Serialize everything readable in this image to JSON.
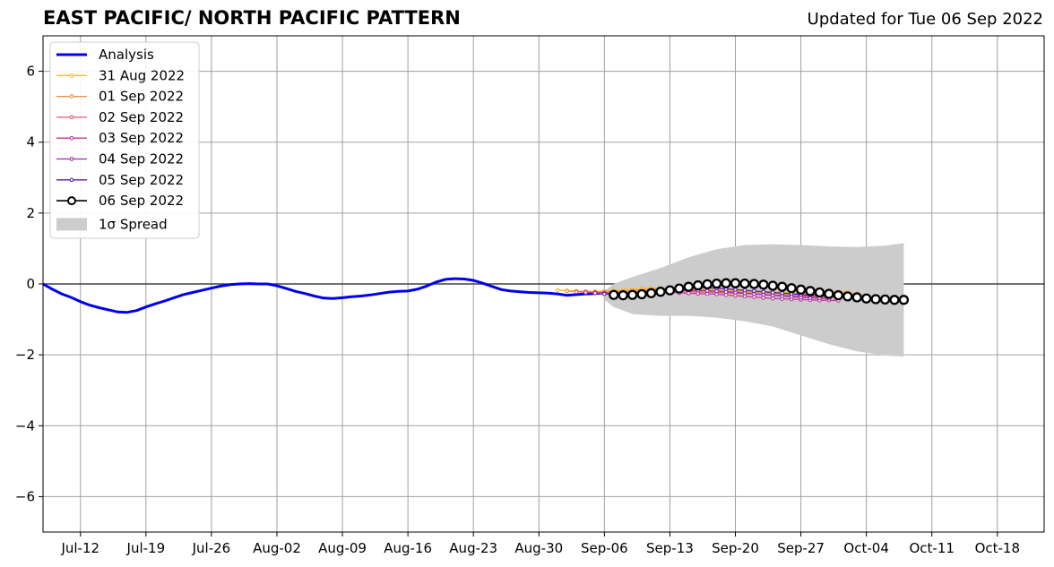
{
  "title": "EAST PACIFIC/ NORTH PACIFIC PATTERN",
  "updated": "Updated for Tue 06 Sep 2022",
  "chart_data": {
    "type": "line",
    "title": "EAST PACIFIC/ NORTH PACIFIC PATTERN",
    "xlabel": "",
    "ylabel": "",
    "x_ticks": [
      "Jul-12",
      "Jul-19",
      "Jul-26",
      "Aug-02",
      "Aug-09",
      "Aug-16",
      "Aug-23",
      "Aug-30",
      "Sep-06",
      "Sep-13",
      "Sep-20",
      "Sep-27",
      "Oct-04",
      "Oct-11",
      "Oct-18"
    ],
    "y_ticks": [
      "−6",
      "−4",
      "−2",
      "0",
      "2",
      "4",
      "6"
    ],
    "ylim": [
      -7,
      7
    ],
    "xlim": [
      "2022-07-08",
      "2022-10-23"
    ],
    "grid": true,
    "legend_position": "top-left",
    "series": [
      {
        "name": "Analysis",
        "color": "#0000ee",
        "x": [
          "2022-07-08",
          "2022-07-09",
          "2022-07-10",
          "2022-07-11",
          "2022-07-12",
          "2022-07-13",
          "2022-07-14",
          "2022-07-15",
          "2022-07-16",
          "2022-07-17",
          "2022-07-18",
          "2022-07-19",
          "2022-07-20",
          "2022-07-21",
          "2022-07-22",
          "2022-07-23",
          "2022-07-24",
          "2022-07-25",
          "2022-07-26",
          "2022-07-27",
          "2022-07-28",
          "2022-07-29",
          "2022-07-30",
          "2022-07-31",
          "2022-08-01",
          "2022-08-02",
          "2022-08-03",
          "2022-08-04",
          "2022-08-05",
          "2022-08-06",
          "2022-08-07",
          "2022-08-08",
          "2022-08-09",
          "2022-08-10",
          "2022-08-11",
          "2022-08-12",
          "2022-08-13",
          "2022-08-14",
          "2022-08-15",
          "2022-08-16",
          "2022-08-17",
          "2022-08-18",
          "2022-08-19",
          "2022-08-20",
          "2022-08-21",
          "2022-08-22",
          "2022-08-23",
          "2022-08-24",
          "2022-08-25",
          "2022-08-26",
          "2022-08-27",
          "2022-08-28",
          "2022-08-29",
          "2022-08-30",
          "2022-08-31",
          "2022-09-01",
          "2022-09-02",
          "2022-09-03",
          "2022-09-04",
          "2022-09-05",
          "2022-09-06"
        ],
        "values": [
          0.0,
          -0.15,
          -0.28,
          -0.38,
          -0.5,
          -0.6,
          -0.67,
          -0.73,
          -0.79,
          -0.8,
          -0.75,
          -0.65,
          -0.56,
          -0.48,
          -0.39,
          -0.3,
          -0.24,
          -0.18,
          -0.12,
          -0.06,
          -0.02,
          0.0,
          0.01,
          0.0,
          0.0,
          -0.05,
          -0.13,
          -0.21,
          -0.27,
          -0.34,
          -0.4,
          -0.41,
          -0.39,
          -0.36,
          -0.34,
          -0.31,
          -0.27,
          -0.23,
          -0.21,
          -0.2,
          -0.15,
          -0.06,
          0.05,
          0.13,
          0.15,
          0.14,
          0.1,
          0.02,
          -0.07,
          -0.16,
          -0.2,
          -0.22,
          -0.24,
          -0.25,
          -0.26,
          -0.28,
          -0.32,
          -0.3,
          -0.28,
          -0.27,
          -0.25
        ]
      },
      {
        "name": "31 Aug 2022",
        "color": "#f5b731",
        "x": [
          "2022-09-01",
          "2022-09-02",
          "2022-09-03",
          "2022-09-04",
          "2022-09-05",
          "2022-09-06",
          "2022-09-07",
          "2022-09-08",
          "2022-09-09",
          "2022-09-10",
          "2022-09-11",
          "2022-09-12",
          "2022-09-13",
          "2022-09-14",
          "2022-09-15",
          "2022-09-16",
          "2022-09-17",
          "2022-09-18",
          "2022-09-19",
          "2022-09-20",
          "2022-09-21",
          "2022-09-22",
          "2022-09-23",
          "2022-09-24",
          "2022-09-25",
          "2022-09-26",
          "2022-09-27",
          "2022-09-28",
          "2022-09-29",
          "2022-09-30",
          "2022-10-01",
          "2022-10-02"
        ],
        "values": [
          -0.17,
          -0.19,
          -0.2,
          -0.21,
          -0.21,
          -0.2,
          -0.19,
          -0.17,
          -0.15,
          -0.13,
          -0.12,
          -0.12,
          -0.12,
          -0.13,
          -0.14,
          -0.15,
          -0.16,
          -0.17,
          -0.18,
          -0.19,
          -0.2,
          -0.21,
          -0.22,
          -0.23,
          -0.24,
          -0.25,
          -0.25,
          -0.25,
          -0.24,
          -0.23,
          -0.22,
          -0.22
        ]
      },
      {
        "name": "01 Sep 2022",
        "color": "#f08a3c",
        "x": [
          "2022-09-02",
          "2022-09-03",
          "2022-09-04",
          "2022-09-05",
          "2022-09-06",
          "2022-09-07",
          "2022-09-08",
          "2022-09-09",
          "2022-09-10",
          "2022-09-11",
          "2022-09-12",
          "2022-09-13",
          "2022-09-14",
          "2022-09-15",
          "2022-09-16",
          "2022-09-17",
          "2022-09-18",
          "2022-09-19",
          "2022-09-20",
          "2022-09-21",
          "2022-09-22",
          "2022-09-23",
          "2022-09-24",
          "2022-09-25",
          "2022-09-26",
          "2022-09-27",
          "2022-09-28",
          "2022-09-29",
          "2022-09-30",
          "2022-10-01",
          "2022-10-02",
          "2022-10-03"
        ],
        "values": [
          -0.2,
          -0.21,
          -0.22,
          -0.23,
          -0.23,
          -0.22,
          -0.21,
          -0.19,
          -0.17,
          -0.16,
          -0.15,
          -0.15,
          -0.16,
          -0.17,
          -0.18,
          -0.19,
          -0.2,
          -0.21,
          -0.22,
          -0.23,
          -0.24,
          -0.25,
          -0.26,
          -0.27,
          -0.28,
          -0.29,
          -0.29,
          -0.29,
          -0.28,
          -0.27,
          -0.27,
          -0.27
        ]
      },
      {
        "name": "02 Sep 2022",
        "color": "#e05a6e",
        "x": [
          "2022-09-03",
          "2022-09-04",
          "2022-09-05",
          "2022-09-06",
          "2022-09-07",
          "2022-09-08",
          "2022-09-09",
          "2022-09-10",
          "2022-09-11",
          "2022-09-12",
          "2022-09-13",
          "2022-09-14",
          "2022-09-15",
          "2022-09-16",
          "2022-09-17",
          "2022-09-18",
          "2022-09-19",
          "2022-09-20",
          "2022-09-21",
          "2022-09-22",
          "2022-09-23",
          "2022-09-24",
          "2022-09-25",
          "2022-09-26",
          "2022-09-27",
          "2022-09-28",
          "2022-09-29",
          "2022-09-30",
          "2022-10-01",
          "2022-10-02"
        ],
        "values": [
          -0.22,
          -0.23,
          -0.24,
          -0.25,
          -0.25,
          -0.24,
          -0.23,
          -0.21,
          -0.2,
          -0.19,
          -0.19,
          -0.2,
          -0.21,
          -0.22,
          -0.23,
          -0.24,
          -0.25,
          -0.26,
          -0.27,
          -0.28,
          -0.3,
          -0.31,
          -0.32,
          -0.33,
          -0.34,
          -0.35,
          -0.36,
          -0.37,
          -0.37,
          -0.37
        ]
      },
      {
        "name": "03 Sep 2022",
        "color": "#c13a9f",
        "x": [
          "2022-09-04",
          "2022-09-05",
          "2022-09-06",
          "2022-09-07",
          "2022-09-08",
          "2022-09-09",
          "2022-09-10",
          "2022-09-11",
          "2022-09-12",
          "2022-09-13",
          "2022-09-14",
          "2022-09-15",
          "2022-09-16",
          "2022-09-17",
          "2022-09-18",
          "2022-09-19",
          "2022-09-20",
          "2022-09-21",
          "2022-09-22",
          "2022-09-23",
          "2022-09-24",
          "2022-09-25",
          "2022-09-26",
          "2022-09-27",
          "2022-09-28",
          "2022-09-29",
          "2022-09-30",
          "2022-10-01"
        ],
        "values": [
          -0.24,
          -0.25,
          -0.26,
          -0.27,
          -0.27,
          -0.27,
          -0.26,
          -0.25,
          -0.24,
          -0.24,
          -0.25,
          -0.26,
          -0.27,
          -0.28,
          -0.29,
          -0.31,
          -0.33,
          -0.35,
          -0.37,
          -0.39,
          -0.41,
          -0.42,
          -0.43,
          -0.44,
          -0.45,
          -0.46,
          -0.46,
          -0.47
        ]
      },
      {
        "name": "04 Sep 2022",
        "color": "#9a2ea8",
        "x": [
          "2022-09-05",
          "2022-09-06",
          "2022-09-07",
          "2022-09-08",
          "2022-09-09",
          "2022-09-10",
          "2022-09-11",
          "2022-09-12",
          "2022-09-13",
          "2022-09-14",
          "2022-09-15",
          "2022-09-16",
          "2022-09-17",
          "2022-09-18",
          "2022-09-19",
          "2022-09-20",
          "2022-09-21",
          "2022-09-22",
          "2022-09-23",
          "2022-09-24",
          "2022-09-25",
          "2022-09-26",
          "2022-09-27",
          "2022-09-28",
          "2022-09-29",
          "2022-09-30"
        ],
        "values": [
          -0.26,
          -0.27,
          -0.28,
          -0.28,
          -0.27,
          -0.25,
          -0.23,
          -0.2,
          -0.18,
          -0.17,
          -0.17,
          -0.18,
          -0.19,
          -0.2,
          -0.22,
          -0.24,
          -0.26,
          -0.28,
          -0.3,
          -0.32,
          -0.34,
          -0.36,
          -0.38,
          -0.39,
          -0.4,
          -0.41
        ]
      },
      {
        "name": "05 Sep 2022",
        "color": "#5a1aa0",
        "x": [
          "2022-09-06",
          "2022-09-07",
          "2022-09-08",
          "2022-09-09",
          "2022-09-10",
          "2022-09-11",
          "2022-09-12",
          "2022-09-13",
          "2022-09-14",
          "2022-09-15",
          "2022-09-16",
          "2022-09-17",
          "2022-09-18",
          "2022-09-19",
          "2022-09-20",
          "2022-09-21",
          "2022-09-22",
          "2022-09-23",
          "2022-09-24",
          "2022-09-25",
          "2022-09-26",
          "2022-09-27",
          "2022-09-28",
          "2022-09-29",
          "2022-09-30"
        ],
        "values": [
          -0.28,
          -0.29,
          -0.29,
          -0.27,
          -0.24,
          -0.2,
          -0.16,
          -0.13,
          -0.11,
          -0.1,
          -0.1,
          -0.11,
          -0.12,
          -0.14,
          -0.16,
          -0.18,
          -0.2,
          -0.22,
          -0.24,
          -0.26,
          -0.28,
          -0.3,
          -0.32,
          -0.33,
          -0.34
        ]
      },
      {
        "name": "06 Sep 2022",
        "color": "#000000",
        "x": [
          "2022-09-07",
          "2022-09-08",
          "2022-09-09",
          "2022-09-10",
          "2022-09-11",
          "2022-09-12",
          "2022-09-13",
          "2022-09-14",
          "2022-09-15",
          "2022-09-16",
          "2022-09-17",
          "2022-09-18",
          "2022-09-19",
          "2022-09-20",
          "2022-09-21",
          "2022-09-22",
          "2022-09-23",
          "2022-09-24",
          "2022-09-25",
          "2022-09-26",
          "2022-09-27",
          "2022-09-28",
          "2022-09-29",
          "2022-09-30",
          "2022-10-01",
          "2022-10-02",
          "2022-10-03",
          "2022-10-04",
          "2022-10-05",
          "2022-10-06",
          "2022-10-07",
          "2022-10-08"
        ],
        "values": [
          -0.31,
          -0.32,
          -0.31,
          -0.29,
          -0.26,
          -0.22,
          -0.18,
          -0.13,
          -0.08,
          -0.04,
          -0.01,
          0.01,
          0.02,
          0.02,
          0.01,
          0.0,
          -0.02,
          -0.05,
          -0.08,
          -0.12,
          -0.16,
          -0.2,
          -0.24,
          -0.28,
          -0.32,
          -0.35,
          -0.38,
          -0.41,
          -0.43,
          -0.44,
          -0.45,
          -0.45
        ]
      }
    ],
    "spread": {
      "name": "1σ Spread",
      "color": "#cccccc",
      "x": [
        "2022-09-06",
        "2022-09-07",
        "2022-09-09",
        "2022-09-12",
        "2022-09-15",
        "2022-09-18",
        "2022-09-21",
        "2022-09-24",
        "2022-09-27",
        "2022-09-30",
        "2022-10-03",
        "2022-10-06",
        "2022-10-08"
      ],
      "upper": [
        -0.2,
        0.0,
        0.2,
        0.45,
        0.75,
        0.98,
        1.1,
        1.12,
        1.1,
        1.06,
        1.04,
        1.08,
        1.15
      ],
      "lower": [
        -0.45,
        -0.65,
        -0.85,
        -0.9,
        -0.9,
        -0.95,
        -1.05,
        -1.2,
        -1.45,
        -1.7,
        -1.9,
        -2.02,
        -2.05
      ]
    }
  }
}
